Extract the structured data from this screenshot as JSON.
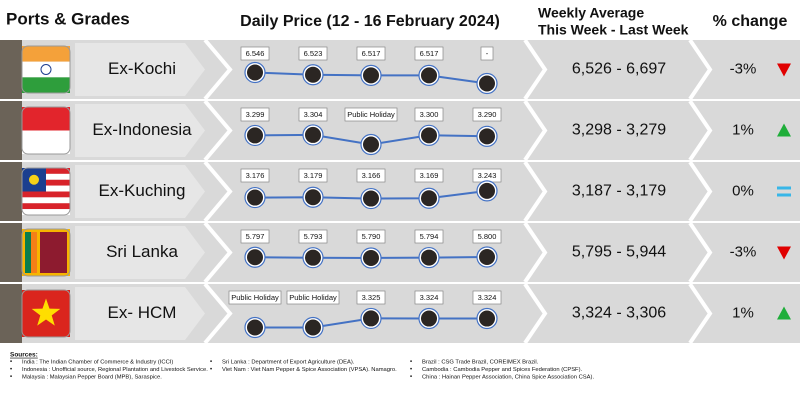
{
  "header": {
    "ports": "Ports & Grades",
    "daily": "Daily Price (12 - 16 February 2024)",
    "weekly_line1": "Weekly Average",
    "weekly_line2": "This Week - Last Week",
    "change": "% change"
  },
  "rows": [
    {
      "port": "Ex-Kochi",
      "flag": "india",
      "prices": [
        "6.546",
        "6.523",
        "6.517",
        "6.517",
        "-"
      ],
      "weekly": "6,526 - 6,697",
      "change": "-3%",
      "trend": "down"
    },
    {
      "port": "Ex-Indonesia",
      "flag": "indonesia",
      "prices": [
        "3.299",
        "3.304",
        "Public Holiday",
        "3.300",
        "3.290"
      ],
      "weekly": "3,298 - 3,279",
      "change": "1%",
      "trend": "up"
    },
    {
      "port": "Ex-Kuching",
      "flag": "malaysia",
      "prices": [
        "3.176",
        "3.179",
        "3.166",
        "3.169",
        "3.243"
      ],
      "weekly": "3,187 - 3,179",
      "change": "0%",
      "trend": "equal"
    },
    {
      "port": "Sri Lanka",
      "flag": "srilanka",
      "prices": [
        "5.797",
        "5.793",
        "5.790",
        "5.794",
        "5.800"
      ],
      "weekly": "5,795 - 5,944",
      "change": "-3%",
      "trend": "down"
    },
    {
      "port": "Ex- HCM",
      "flag": "vietnam",
      "prices": [
        "Public Holiday",
        "Public Holiday",
        "3.325",
        "3.324",
        "3.324"
      ],
      "weekly": "3,324 - 3,306",
      "change": "1%",
      "trend": "up"
    }
  ],
  "sources": {
    "title": "Sources:",
    "items": [
      "India : The Indian Chamber of Commerce & Industry (ICCI)",
      "Indonesia : Unofficial source, Regional Plantation and Livestock Service.",
      "Malaysia : Malaysian Pepper Board (MPB), Saraspice.",
      "Sri Lanka : Department of Export Agriculture (DEA).",
      "Viet Nam : Viet Nam Pepper & Spice Association (VPSA). Namagro.",
      "Brazil : CSG Trade Brazil, COREIMEX Brazil.",
      "Cambodia : Cambodia Pepper and Spices Federation (CPSF).",
      "China : Hainan Pepper Association, China Spice Association CSA)."
    ]
  }
}
